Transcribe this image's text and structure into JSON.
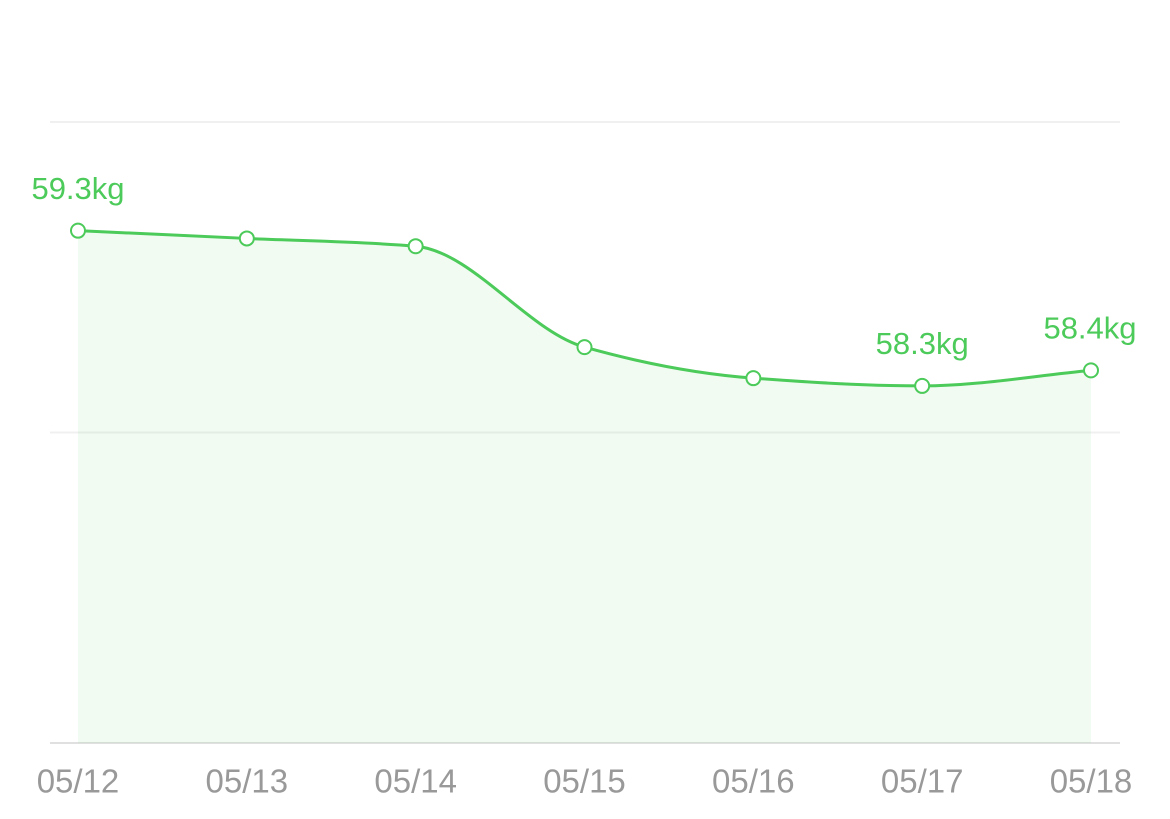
{
  "chart_data": {
    "type": "line",
    "categories": [
      "05/12",
      "05/13",
      "05/14",
      "05/15",
      "05/16",
      "05/17",
      "05/18"
    ],
    "values": [
      59.3,
      59.25,
      59.2,
      58.55,
      58.35,
      58.3,
      58.4
    ],
    "value_labels": [
      "59.3kg",
      null,
      null,
      null,
      null,
      "58.3kg",
      "58.4kg"
    ],
    "color": "#4cca5a",
    "ylim": [
      56,
      60
    ],
    "yticks": [
      56,
      58,
      60
    ],
    "grid": true
  }
}
